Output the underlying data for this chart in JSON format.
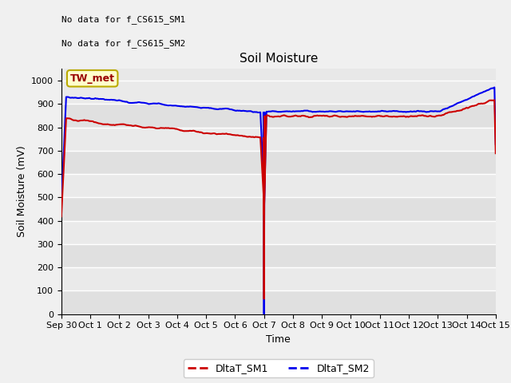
{
  "title": "Soil Moisture",
  "ylabel": "Soil Moisture (mV)",
  "xlabel": "Time",
  "ylim": [
    0,
    1050
  ],
  "yticks": [
    0,
    100,
    200,
    300,
    400,
    500,
    600,
    700,
    800,
    900,
    1000
  ],
  "bg_color": "#e8e8e8",
  "grid_color": "#ffffff",
  "text_annotations": [
    "No data for f_CS615_SM1",
    "No data for f_CS615_SM2"
  ],
  "legend_label": "TW_met",
  "legend_box_facecolor": "#ffffcc",
  "legend_box_edge": "#bbaa00",
  "sm1_color": "#cc0000",
  "sm2_color": "#0000ee",
  "xtick_labels": [
    "Sep 30",
    "Oct 1",
    "Oct 2",
    "Oct 3",
    "Oct 4",
    "Oct 5",
    "Oct 6",
    "Oct 7",
    "Oct 8",
    "Oct 9",
    "Oct 10",
    "Oct 11",
    "Oct 12",
    "Oct 13",
    "Oct 14",
    "Oct 15"
  ],
  "title_fontsize": 11,
  "label_fontsize": 9,
  "tick_fontsize": 8,
  "figsize": [
    6.4,
    4.8
  ],
  "dpi": 100,
  "linewidth": 1.5
}
